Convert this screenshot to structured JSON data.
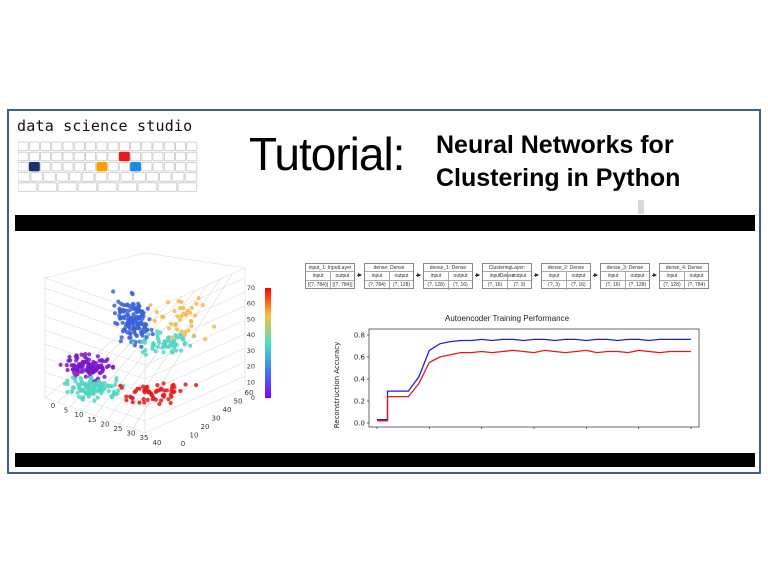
{
  "brand": {
    "text": "data science studio"
  },
  "title": {
    "word": "Tutorial:",
    "line1": "Neural Networks for",
    "line2": "Clustering in Python"
  },
  "scatter3d": {
    "colorbar_ticks": [
      "0",
      "10",
      "20",
      "30",
      "40",
      "50",
      "60",
      "70"
    ],
    "x_ticks": [
      "0",
      "5",
      "10",
      "15",
      "20",
      "25",
      "30",
      "35",
      "40"
    ],
    "y_ticks": [
      "0",
      "10",
      "20",
      "30",
      "40",
      "50",
      "60"
    ],
    "colors": {
      "red": "#e41a1c",
      "blue": "#3a62d8",
      "purple": "#7a16c9",
      "cyan": "#4fd6c2"
    }
  },
  "network": {
    "header_input": "input",
    "header_output": "output",
    "layers": [
      {
        "name": "input_1: InputLayer",
        "input": "[(?, 784)]",
        "output": "[(?, 784)]"
      },
      {
        "name": "dense: Dense",
        "input": "(?, 784)",
        "output": "(?, 128)"
      },
      {
        "name": "dense_1: Dense",
        "input": "(?, 128)",
        "output": "(?, 16)"
      },
      {
        "name": "ClusteringLayer: Dense",
        "input": "(?, 16)",
        "output": "(?, 3)"
      },
      {
        "name": "dense_2: Dense",
        "input": "(?, 3)",
        "output": "(?, 16)"
      },
      {
        "name": "dense_3: Dense",
        "input": "(?, 16)",
        "output": "(?, 128)"
      },
      {
        "name": "dense_4: Dense",
        "input": "(?, 128)",
        "output": "(?, 784)"
      }
    ]
  },
  "chart_data": {
    "type": "line",
    "title": "Autoencoder Training Performance",
    "xlabel": "",
    "ylabel": "Reconstruction Accuracy",
    "ylim": [
      0,
      0.8
    ],
    "yticks": [
      "0.0",
      "0.2",
      "0.4",
      "0.6",
      "0.8"
    ],
    "grid": false,
    "x": [
      0,
      1,
      2,
      3,
      4,
      5,
      6,
      7,
      8,
      9,
      10,
      11,
      12,
      13,
      14,
      15,
      16,
      17,
      18,
      19,
      20,
      21,
      22,
      23,
      24,
      25,
      26,
      27,
      28,
      29,
      30
    ],
    "series": [
      {
        "color": "#1f1fdd",
        "values": [
          0.03,
          0.29,
          0.29,
          0.29,
          0.42,
          0.66,
          0.72,
          0.74,
          0.75,
          0.75,
          0.76,
          0.75,
          0.76,
          0.76,
          0.75,
          0.76,
          0.76,
          0.75,
          0.76,
          0.76,
          0.75,
          0.76,
          0.76,
          0.75,
          0.76,
          0.76,
          0.75,
          0.76,
          0.76,
          0.76,
          0.76
        ]
      },
      {
        "color": "#e11b1b",
        "values": [
          0.02,
          0.24,
          0.24,
          0.24,
          0.36,
          0.55,
          0.6,
          0.62,
          0.64,
          0.64,
          0.65,
          0.64,
          0.65,
          0.66,
          0.65,
          0.64,
          0.66,
          0.65,
          0.64,
          0.65,
          0.66,
          0.64,
          0.65,
          0.65,
          0.64,
          0.66,
          0.65,
          0.64,
          0.65,
          0.65,
          0.65
        ]
      }
    ]
  }
}
